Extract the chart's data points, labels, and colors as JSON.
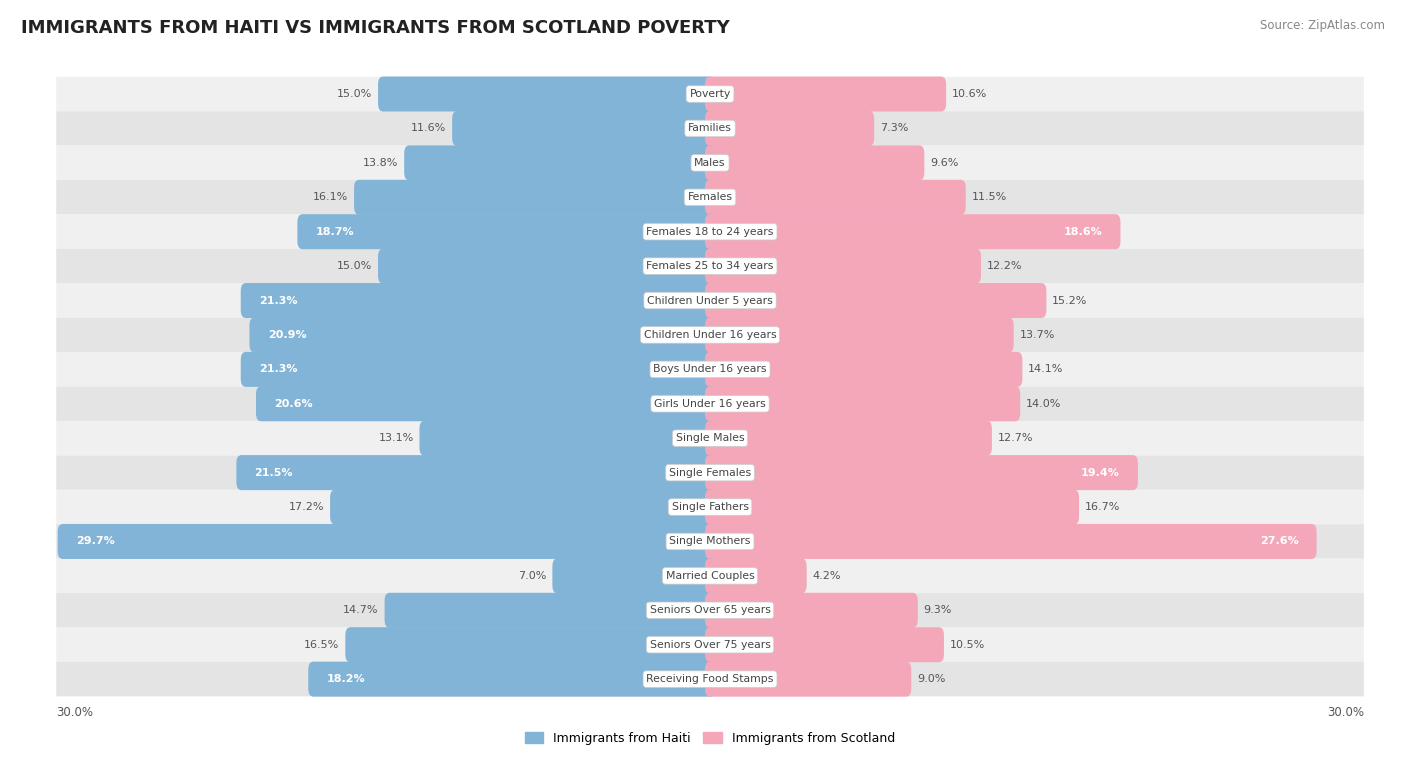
{
  "title": "IMMIGRANTS FROM HAITI VS IMMIGRANTS FROM SCOTLAND POVERTY",
  "source": "Source: ZipAtlas.com",
  "categories": [
    "Poverty",
    "Families",
    "Males",
    "Females",
    "Females 18 to 24 years",
    "Females 25 to 34 years",
    "Children Under 5 years",
    "Children Under 16 years",
    "Boys Under 16 years",
    "Girls Under 16 years",
    "Single Males",
    "Single Females",
    "Single Fathers",
    "Single Mothers",
    "Married Couples",
    "Seniors Over 65 years",
    "Seniors Over 75 years",
    "Receiving Food Stamps"
  ],
  "haiti_values": [
    15.0,
    11.6,
    13.8,
    16.1,
    18.7,
    15.0,
    21.3,
    20.9,
    21.3,
    20.6,
    13.1,
    21.5,
    17.2,
    29.7,
    7.0,
    14.7,
    16.5,
    18.2
  ],
  "scotland_values": [
    10.6,
    7.3,
    9.6,
    11.5,
    18.6,
    12.2,
    15.2,
    13.7,
    14.1,
    14.0,
    12.7,
    19.4,
    16.7,
    27.6,
    4.2,
    9.3,
    10.5,
    9.0
  ],
  "haiti_color": "#82b4d8",
  "scotland_color": "#f4a7b9",
  "row_bg_light": "#f0f0f0",
  "row_bg_dark": "#e4e4e4",
  "max_value": 30.0,
  "legend_haiti": "Immigrants from Haiti",
  "legend_scotland": "Immigrants from Scotland",
  "title_fontsize": 13,
  "source_fontsize": 8.5,
  "val_fontsize": 8.0,
  "cat_fontsize": 7.8
}
